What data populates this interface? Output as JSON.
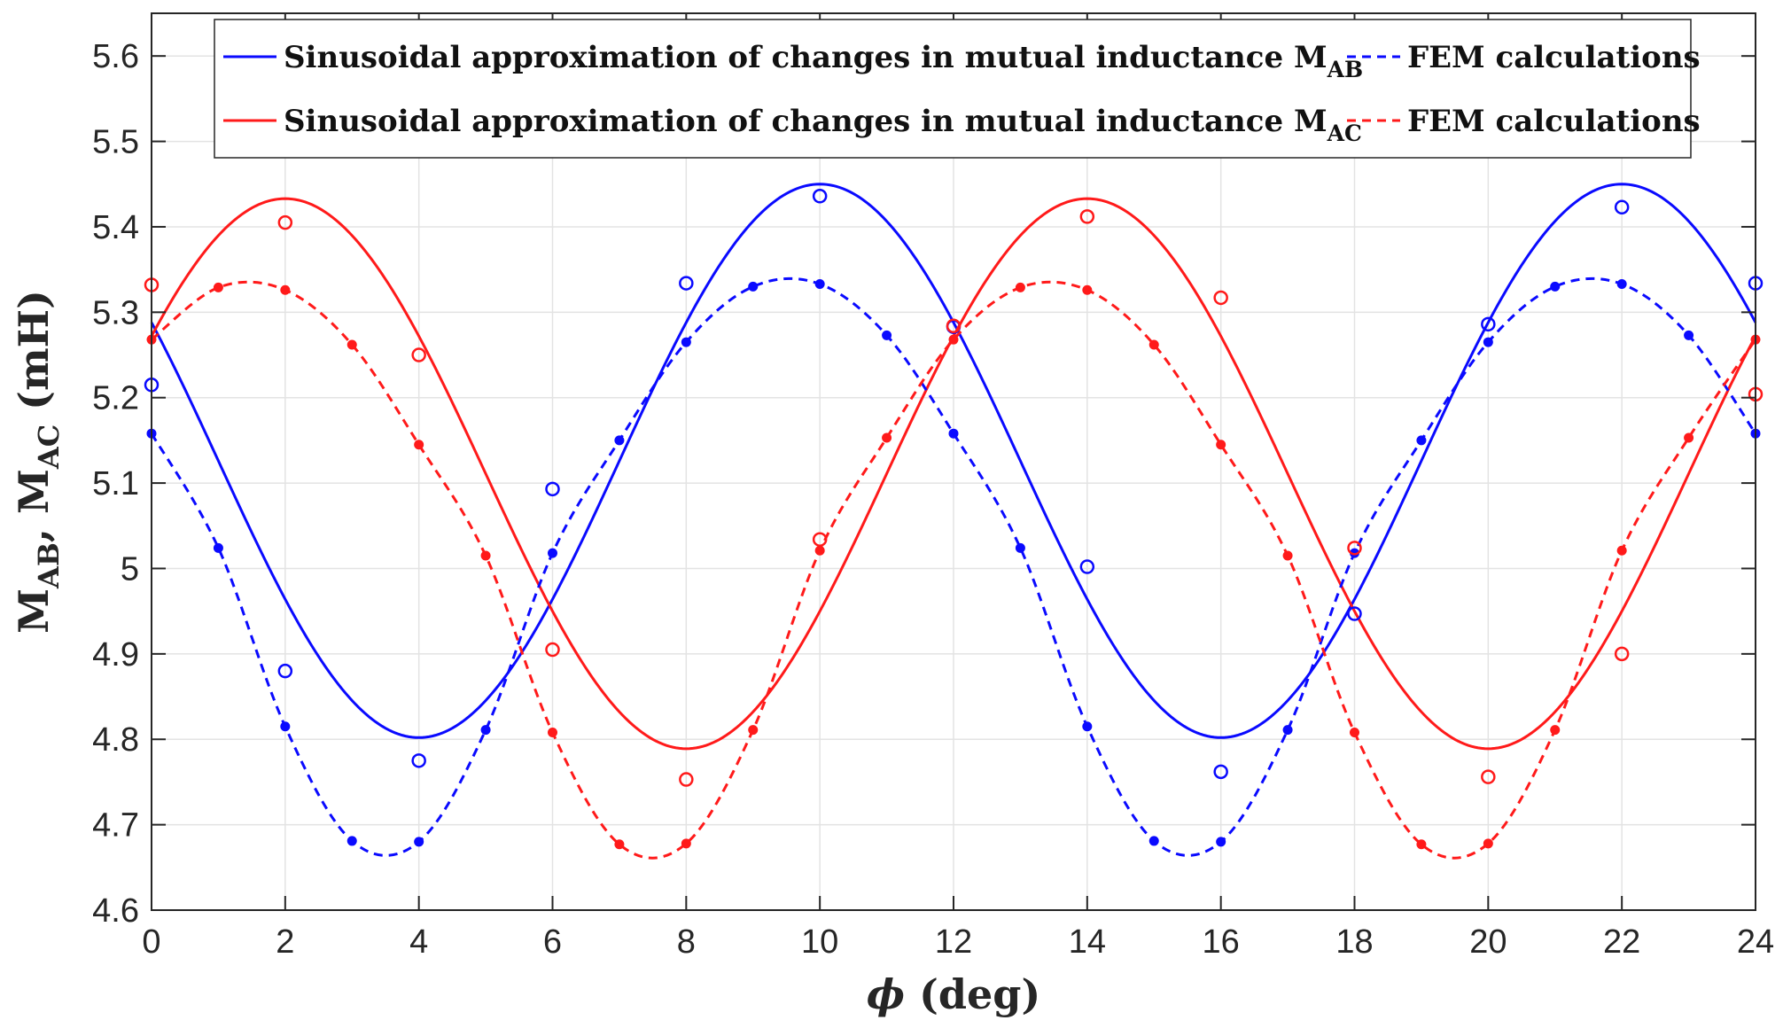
{
  "chart_data": {
    "type": "line",
    "title": "",
    "xlabel": {
      "symbol": "ϕ",
      "unit": " (deg)"
    },
    "ylabel": {
      "part1": "M",
      "sub1": "AB",
      "sep": ", ",
      "part2": "M",
      "sub2": "AC",
      "unit": " (mH)"
    },
    "xlim": [
      0,
      24
    ],
    "ylim": [
      4.6,
      5.65
    ],
    "grid": true,
    "xticks": [
      0,
      2,
      4,
      6,
      8,
      10,
      12,
      14,
      16,
      18,
      20,
      22,
      24
    ],
    "xtick_labels": [
      "0",
      "2",
      "4",
      "6",
      "8",
      "10",
      "12",
      "14",
      "16",
      "18",
      "20",
      "22",
      "24"
    ],
    "yticks": [
      4.6,
      4.7,
      4.8,
      4.9,
      5.0,
      5.1,
      5.2,
      5.3,
      5.4,
      5.5,
      5.6
    ],
    "ytick_labels": [
      "4.6",
      "4.7",
      "4.8",
      "4.9",
      "5",
      "5.1",
      "5.2",
      "5.3",
      "5.4",
      "5.5",
      "5.6"
    ],
    "colors": {
      "ab": "#0a0aff",
      "ac": "#ff1a1a",
      "grid": "#e3e3e3",
      "axis": "#262626"
    },
    "legend": {
      "position": "top",
      "entries": [
        {
          "text": "Sinusoidal approximation of changes in mutual inductance M",
          "sub": "AB",
          "style": "solid",
          "color": "#0a0aff"
        },
        {
          "text": "FEM calculations",
          "style": "dashed",
          "color": "#0a0aff"
        },
        {
          "text": "Sinusoidal approximation of changes in mutual inductance M",
          "sub": "AC",
          "style": "solid",
          "color": "#ff1a1a"
        },
        {
          "text": "FEM calculations",
          "style": "dashed",
          "color": "#ff1a1a"
        }
      ]
    },
    "series": [
      {
        "name": "Sinusoidal approximation M_AB",
        "style": "solid",
        "color": "#0a0aff",
        "model": {
          "offset": 5.126,
          "amplitude": 0.324,
          "period": 12,
          "peak_x": 10
        }
      },
      {
        "name": "Sinusoidal approximation M_AC",
        "style": "solid",
        "color": "#ff1a1a",
        "model": {
          "offset": 5.111,
          "amplitude": 0.322,
          "period": 12,
          "peak_x": 2
        }
      },
      {
        "name": "FEM calculations M_AB (dashed)",
        "style": "dashed",
        "color": "#0a0aff",
        "x": [
          0,
          1,
          2,
          3,
          4,
          5,
          6,
          7,
          8,
          9,
          10,
          11,
          12,
          13,
          14,
          15,
          16,
          17,
          18,
          19,
          20,
          21,
          22,
          23,
          24
        ],
        "y": [
          5.158,
          5.024,
          4.815,
          4.681,
          4.68,
          4.811,
          5.018,
          5.15,
          5.265,
          5.33,
          5.333,
          5.273,
          5.158,
          5.024,
          4.815,
          4.681,
          4.68,
          4.811,
          5.018,
          5.15,
          5.265,
          5.33,
          5.333,
          5.273,
          5.158
        ]
      },
      {
        "name": "FEM calculations M_AC (dashed)",
        "style": "dashed",
        "color": "#ff1a1a",
        "x": [
          0,
          1,
          2,
          3,
          4,
          5,
          6,
          7,
          8,
          9,
          10,
          11,
          12,
          13,
          14,
          15,
          16,
          17,
          18,
          19,
          20,
          21,
          22,
          23,
          24
        ],
        "y": [
          5.268,
          5.329,
          5.326,
          5.262,
          5.145,
          5.015,
          4.808,
          4.677,
          4.678,
          4.811,
          5.021,
          5.153,
          5.268,
          5.329,
          5.326,
          5.262,
          5.145,
          5.015,
          4.808,
          4.677,
          4.678,
          4.811,
          5.021,
          5.153,
          5.268
        ]
      },
      {
        "name": "Measurements M_AB (circles)",
        "style": "markers-open",
        "color": "#0a0aff",
        "x": [
          0,
          2,
          4,
          6,
          8,
          10,
          12,
          14,
          16,
          18,
          20,
          22,
          24
        ],
        "y": [
          5.215,
          4.88,
          4.775,
          5.093,
          5.334,
          5.436,
          5.283,
          5.002,
          4.762,
          4.947,
          5.286,
          5.423,
          5.334
        ]
      },
      {
        "name": "Measurements M_AC (circles)",
        "style": "markers-open",
        "color": "#ff1a1a",
        "x": [
          0,
          2,
          4,
          6,
          8,
          10,
          12,
          14,
          16,
          18,
          20,
          22,
          24
        ],
        "y": [
          5.332,
          5.405,
          5.25,
          4.905,
          4.753,
          5.034,
          5.284,
          5.412,
          5.317,
          5.024,
          4.756,
          4.9,
          5.204
        ]
      }
    ]
  }
}
